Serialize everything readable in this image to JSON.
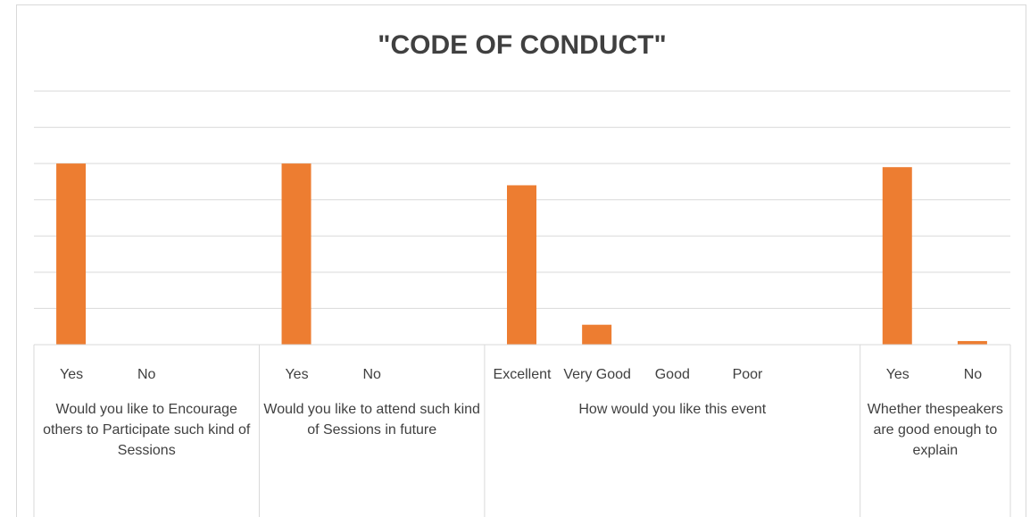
{
  "chart_data": {
    "type": "bar",
    "title": "\"CODE OF CONDUCT\"",
    "color": "#ed7d31",
    "ylim": [
      0,
      140
    ],
    "yticks": [
      0,
      20,
      40,
      60,
      80,
      100,
      120,
      140
    ],
    "grid": true,
    "groups": [
      {
        "label": "Would you like to Encourage others to Participate such kind of Sessions",
        "categories": [
          "Yes",
          "No",
          null
        ],
        "values": [
          100,
          0,
          null
        ]
      },
      {
        "label": "Would you like to attend such kind of Sessions in future",
        "categories": [
          "Yes",
          "No",
          null
        ],
        "values": [
          100,
          0,
          null
        ]
      },
      {
        "label": "How would you like this event",
        "categories": [
          "Excellent",
          "Very Good",
          "Good",
          "Poor",
          null
        ],
        "values": [
          88,
          11,
          0,
          0,
          null
        ]
      },
      {
        "label": "Whether thespeakers are good enough to explain",
        "categories": [
          "Yes",
          "No"
        ],
        "values": [
          98,
          2
        ]
      }
    ]
  }
}
